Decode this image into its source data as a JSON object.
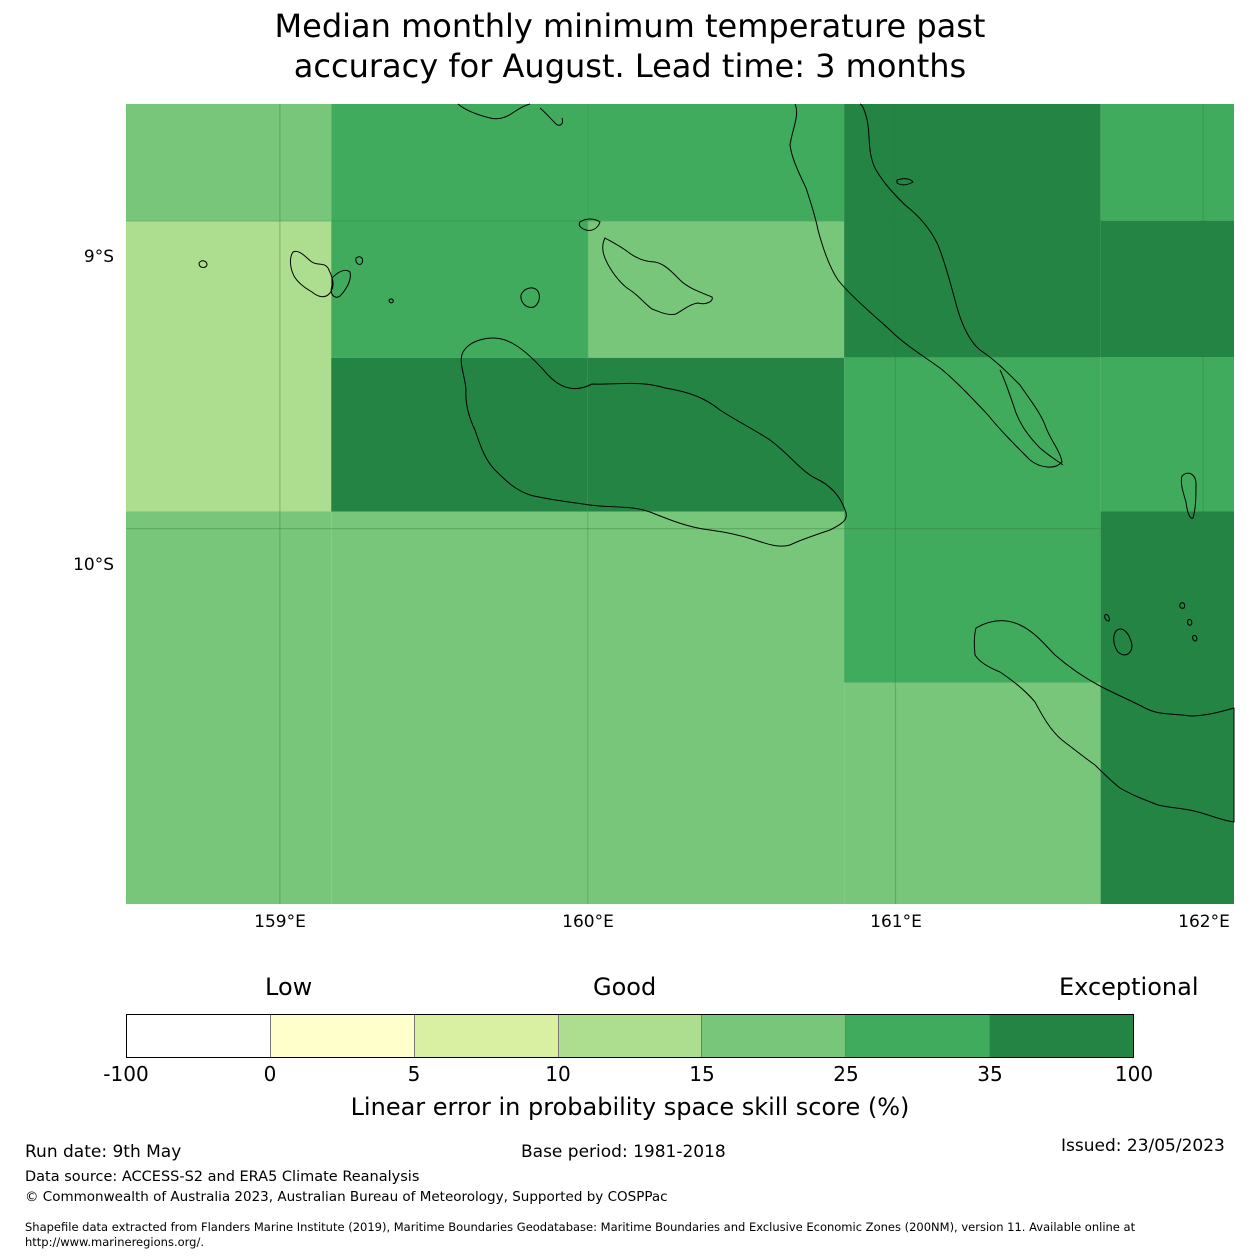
{
  "title": {
    "line1": "Median monthly minimum temperature past",
    "line2": "accuracy for August. Lead time: 3 months"
  },
  "map": {
    "lat_labels": [
      "9°S",
      "10°S"
    ],
    "lon_labels": [
      "159°E",
      "160°E",
      "161°E",
      "162°E"
    ],
    "extent": {
      "lon": [
        158.5,
        162.1
      ],
      "lat": [
        -8.62,
        -11.22
      ]
    },
    "skill_grid": {
      "lon_edges": [
        158.5,
        159.1667,
        160.0,
        160.8333,
        161.6667,
        162.1
      ],
      "lat_edges": [
        -8.62,
        -9.0,
        -9.4444,
        -9.9444,
        -10.5,
        -11.22
      ],
      "cells": [
        {
          "lon": [
            158.5,
            159.1667
          ],
          "lat": [
            -8.62,
            -9.0
          ],
          "category": "15-25"
        },
        {
          "lon": [
            158.5,
            159.1667
          ],
          "lat": [
            -9.0,
            -9.9444
          ],
          "category": "10-15"
        },
        {
          "lon": [
            158.5,
            159.1667
          ],
          "lat": [
            -9.9444,
            -11.22
          ],
          "category": "15-25"
        },
        {
          "lon": [
            159.1667,
            160.0
          ],
          "lat": [
            -8.62,
            -9.4444
          ],
          "category": "25-35"
        },
        {
          "lon": [
            159.1667,
            160.0
          ],
          "lat": [
            -9.4444,
            -9.9444
          ],
          "category": "35-100"
        },
        {
          "lon": [
            159.1667,
            160.0
          ],
          "lat": [
            -9.9444,
            -11.22
          ],
          "category": "15-25"
        },
        {
          "lon": [
            160.0,
            160.8333
          ],
          "lat": [
            -8.62,
            -9.0
          ],
          "category": "25-35"
        },
        {
          "lon": [
            160.0,
            160.8333
          ],
          "lat": [
            -9.0,
            -9.4444
          ],
          "category": "15-25"
        },
        {
          "lon": [
            160.0,
            160.8333
          ],
          "lat": [
            -9.4444,
            -9.9444
          ],
          "category": "35-100"
        },
        {
          "lon": [
            160.0,
            160.8333
          ],
          "lat": [
            -9.9444,
            -11.22
          ],
          "category": "15-25"
        },
        {
          "lon": [
            160.8333,
            161.6667
          ],
          "lat": [
            -8.62,
            -9.4444
          ],
          "category": "35-100"
        },
        {
          "lon": [
            160.8333,
            161.6667
          ],
          "lat": [
            -9.4444,
            -10.5
          ],
          "category": "25-35"
        },
        {
          "lon": [
            160.8333,
            161.6667
          ],
          "lat": [
            -10.5,
            -11.22
          ],
          "category": "15-25"
        },
        {
          "lon": [
            161.6667,
            162.1
          ],
          "lat": [
            -8.62,
            -9.0
          ],
          "category": "25-35"
        },
        {
          "lon": [
            161.6667,
            162.1
          ],
          "lat": [
            -9.0,
            -9.4444
          ],
          "category": "35-100"
        },
        {
          "lon": [
            161.6667,
            162.1
          ],
          "lat": [
            -9.4444,
            -9.9444
          ],
          "category": "25-35"
        },
        {
          "lon": [
            161.6667,
            162.1
          ],
          "lat": [
            -9.9444,
            -11.22
          ],
          "category": "35-100"
        }
      ]
    },
    "gridlines": {
      "lon": [
        159,
        160,
        161,
        162
      ],
      "lat": [
        -9,
        -10
      ]
    }
  },
  "legend": {
    "category_labels": {
      "low": "Low",
      "good": "Good",
      "exceptional": "Exceptional"
    },
    "ticks": [
      "-100",
      "0",
      "5",
      "10",
      "15",
      "25",
      "35",
      "100"
    ],
    "bins": [
      {
        "range": "-100-0",
        "color": "#ffffff"
      },
      {
        "range": "0-5",
        "color": "#ffffcc"
      },
      {
        "range": "5-10",
        "color": "#d9f0a3"
      },
      {
        "range": "10-15",
        "color": "#addd8e"
      },
      {
        "range": "15-25",
        "color": "#78c679"
      },
      {
        "range": "25-35",
        "color": "#41ab5d"
      },
      {
        "range": "35-100",
        "color": "#238443"
      }
    ],
    "axis_label": "Linear error in probability space skill score (%)"
  },
  "footer": {
    "run_date": "Run date: 9th May",
    "base_period": "Base period: 1981-2018",
    "issued": "Issued: 23/05/2023",
    "data_source": "Data source: ACCESS-S2 and ERA5 Climate Reanalysis",
    "copyright": "© Commonwealth of Australia 2023, Australian Bureau of Meteorology, Supported by COSPPac",
    "shapefile_line1": "Shapefile data extracted from Flanders Marine Institute (2019), Maritime Boundaries Geodatabase: Maritime Boundaries and Exclusive Economic Zones (200NM), version 11. Available online at",
    "shapefile_line2": "http://www.marineregions.org/."
  }
}
